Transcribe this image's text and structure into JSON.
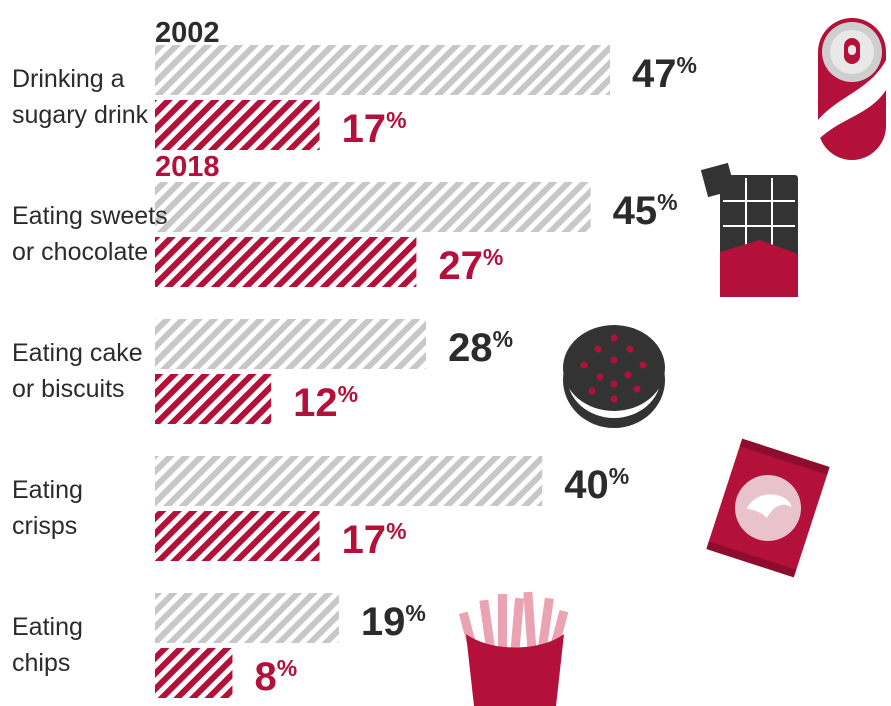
{
  "chart_data": {
    "type": "bar",
    "orientation": "horizontal",
    "title": "",
    "xlabel": "",
    "ylabel": "",
    "unit": "%",
    "xlim": [
      0,
      47
    ],
    "grid": false,
    "legend_placement": "inline-top",
    "categories": [
      [
        "Drinking a",
        "sugary drink"
      ],
      [
        "Eating sweets",
        "or chocolate"
      ],
      [
        "Eating cake",
        "or biscuits"
      ],
      [
        "Eating",
        "crisps"
      ],
      [
        "Eating",
        "chips"
      ]
    ],
    "series": [
      {
        "name": "2002",
        "values": [
          47,
          45,
          28,
          40,
          19
        ]
      },
      {
        "name": "2018",
        "values": [
          17,
          27,
          12,
          17,
          8
        ]
      }
    ],
    "icons": [
      "soda-can-icon",
      "chocolate-bar-icon",
      "cookie-icon",
      "crisps-bag-icon",
      "fries-icon"
    ]
  },
  "colors": {
    "series_2002": "#c7c7c7",
    "series_2018": "#b3103a",
    "value_2002": "#2b2b2b",
    "value_2018": "#b3103a",
    "label": "#2b2b2b",
    "icon_dark": "#333333",
    "icon_red": "#b3103a"
  }
}
